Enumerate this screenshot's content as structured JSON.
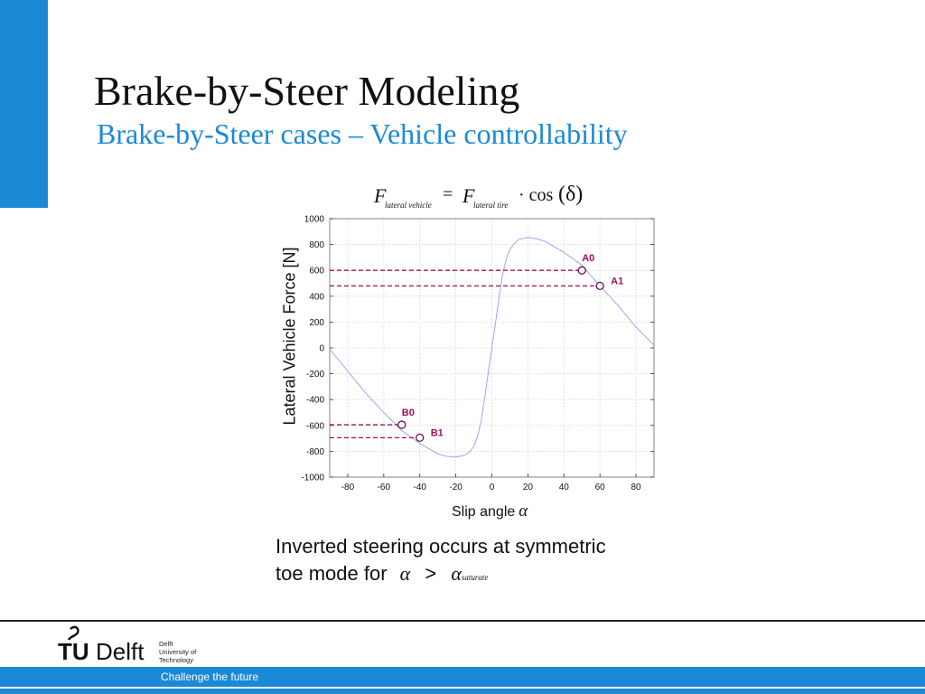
{
  "slide": {
    "title": "Brake-by-Steer Modeling",
    "subtitle": "Brake-by-Steer cases – Vehicle controllability"
  },
  "formula": {
    "lhs": "F",
    "lhs_sub": "lateral  vehicle",
    "equals": "=",
    "rhs": "F",
    "rhs_sub": "lateral  tire",
    "op": "· cos",
    "arg": "(δ)"
  },
  "note": {
    "line1": "Inverted steering occurs at symmetric",
    "line2_prefix": "toe mode for",
    "alpha": "α",
    "gt": ">",
    "alpha2": "α",
    "alpha2_sub": "saturate"
  },
  "footer": {
    "logo_tu": "TU",
    "logo_delft": "Delft",
    "org_line1": "Delft",
    "org_line2": "University of",
    "org_line3": "Technology",
    "tagline": "Challenge the future"
  },
  "colors": {
    "accent": "#1c89d6",
    "curve": "#8da0f0",
    "marker": "#a0105a"
  },
  "chart_data": {
    "type": "line",
    "xlabel_text": "Slip angle",
    "xlabel_symbol": "α",
    "ylabel": "Lateral Vehicle Force [N]",
    "xlim": [
      -90,
      90
    ],
    "ylim": [
      -1000,
      1000
    ],
    "xticks": [
      -80,
      -60,
      -40,
      -20,
      0,
      20,
      40,
      60,
      80
    ],
    "yticks": [
      -1000,
      -800,
      -600,
      -400,
      -200,
      0,
      200,
      400,
      600,
      800,
      1000
    ],
    "grid": true,
    "series": [
      {
        "x": [
          -90,
          -80,
          -70,
          -60,
          -50,
          -40,
          -30,
          -25,
          -20,
          -15,
          -12,
          -10,
          -8,
          -6,
          -4,
          -2,
          0,
          2,
          4,
          6,
          8,
          10,
          12,
          15,
          20,
          25,
          30,
          40,
          50,
          60,
          70,
          80,
          90
        ],
        "y": [
          -10,
          -180,
          -350,
          -500,
          -640,
          -740,
          -820,
          -840,
          -845,
          -830,
          -800,
          -760,
          -690,
          -570,
          -390,
          -190,
          0,
          190,
          390,
          570,
          690,
          760,
          800,
          840,
          855,
          845,
          820,
          740,
          640,
          480,
          330,
          160,
          20
        ]
      }
    ],
    "points": [
      {
        "label": "A0",
        "x": 50,
        "y": 600
      },
      {
        "label": "A1",
        "x": 60,
        "y": 480
      },
      {
        "label": "B0",
        "x": -50,
        "y": -595
      },
      {
        "label": "B1",
        "x": -40,
        "y": -695
      }
    ]
  }
}
